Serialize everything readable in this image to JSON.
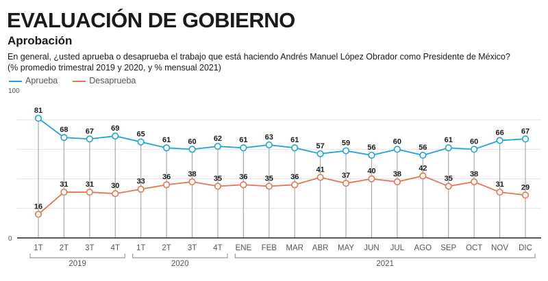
{
  "header": {
    "title": "EVALUACIÓN DE GOBIERNO",
    "subtitle": "Aprobación",
    "question": "En general, ¿usted aprueba o desaprueba el trabajo que está haciendo Andrés Manuel López Obrador como Presidente de México?",
    "note": "(% promedio trimestral 2019 y 2020, y % mensual 2021)"
  },
  "chart_data": {
    "type": "line",
    "title": "Aprobación",
    "categories": [
      "1T",
      "2T",
      "3T",
      "4T",
      "1T",
      "2T",
      "3T",
      "4T",
      "ENE",
      "FEB",
      "MAR",
      "ABR",
      "MAY",
      "JUN",
      "JUL",
      "AGO",
      "SEP",
      "OCT",
      "NOV",
      "DIC"
    ],
    "groups": [
      {
        "label": "2019",
        "from": 0,
        "to": 3
      },
      {
        "label": "2020",
        "from": 4,
        "to": 7
      },
      {
        "label": "2021",
        "from": 8,
        "to": 19
      }
    ],
    "ylim": [
      0,
      100
    ],
    "yticks": [
      0,
      100
    ],
    "grid": [
      20,
      40,
      60,
      80
    ],
    "legend_position": "top-left",
    "series": [
      {
        "name": "Aprueba",
        "color": "#1ba5d8",
        "values": [
          81,
          68,
          67,
          69,
          65,
          61,
          60,
          62,
          61,
          63,
          61,
          57,
          59,
          56,
          60,
          56,
          61,
          60,
          66,
          67
        ]
      },
      {
        "name": "Desaprueba",
        "color": "#e8744f",
        "values": [
          16,
          31,
          31,
          30,
          33,
          36,
          38,
          35,
          36,
          35,
          36,
          41,
          37,
          40,
          38,
          42,
          35,
          38,
          31,
          29
        ]
      }
    ]
  }
}
